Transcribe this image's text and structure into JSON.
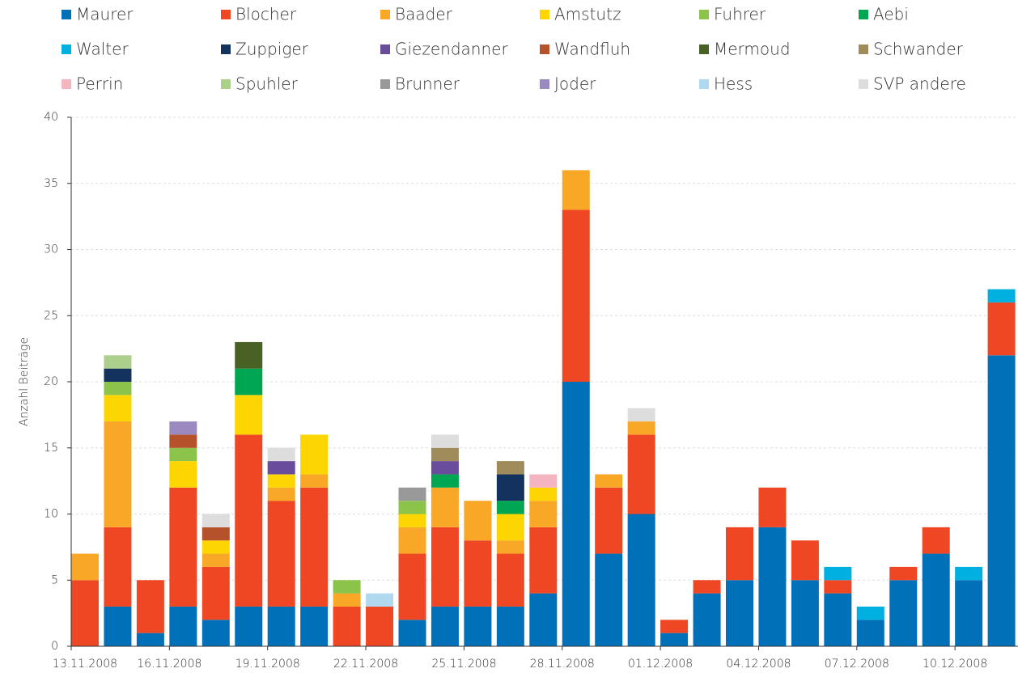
{
  "chart_data": {
    "type": "stacked_bar",
    "y_label": "Anzahl Beiträge",
    "categories": [
      "13.11.2008",
      null,
      null,
      "16.11.2008",
      null,
      null,
      "19.11.2008",
      null,
      null,
      "22.11.2008",
      null,
      null,
      "25.11.2008",
      null,
      null,
      "28.11.2008",
      null,
      null,
      "01.12.2008",
      null,
      null,
      "04.12.2008",
      null,
      null,
      "07.12.2008",
      null,
      null,
      "10.12.2008",
      null
    ],
    "ylim": [
      0,
      40
    ],
    "yticks": [
      0,
      5,
      10,
      15,
      20,
      25,
      30,
      35,
      40
    ],
    "grid": true,
    "series": [
      {
        "name": "Maurer",
        "color": "#0070b8",
        "values": [
          0,
          3,
          1,
          3,
          2,
          3,
          3,
          3,
          0,
          0,
          2,
          3,
          3,
          3,
          4,
          20,
          7,
          10,
          1,
          4,
          5,
          9,
          5,
          4,
          2,
          5,
          7,
          5,
          22
        ]
      },
      {
        "name": "Blocher",
        "color": "#ef4723",
        "values": [
          5,
          6,
          4,
          9,
          4,
          13,
          8,
          9,
          3,
          3,
          5,
          6,
          5,
          4,
          5,
          13,
          5,
          6,
          1,
          1,
          4,
          3,
          3,
          1,
          0,
          1,
          2,
          0,
          4
        ]
      },
      {
        "name": "Baader",
        "color": "#f9a727",
        "values": [
          2,
          8,
          0,
          0,
          1,
          0,
          1,
          1,
          1,
          0,
          2,
          3,
          3,
          1,
          2,
          3,
          1,
          1,
          0,
          0,
          0,
          0,
          0,
          0,
          0,
          0,
          0,
          0,
          0
        ]
      },
      {
        "name": "Amstutz",
        "color": "#fdd500",
        "values": [
          0,
          2,
          0,
          2,
          1,
          3,
          1,
          3,
          0,
          0,
          1,
          0,
          0,
          2,
          1,
          0,
          0,
          0,
          0,
          0,
          0,
          0,
          0,
          0,
          0,
          0,
          0,
          0,
          0
        ]
      },
      {
        "name": "Fuhrer",
        "color": "#8cc34a",
        "values": [
          0,
          1,
          0,
          1,
          0,
          0,
          0,
          0,
          1,
          0,
          1,
          0,
          0,
          0,
          0,
          0,
          0,
          0,
          0,
          0,
          0,
          0,
          0,
          0,
          0,
          0,
          0,
          0,
          0
        ]
      },
      {
        "name": "Aebi",
        "color": "#00a651",
        "values": [
          0,
          0,
          0,
          0,
          0,
          2,
          0,
          0,
          0,
          0,
          0,
          1,
          0,
          1,
          0,
          0,
          0,
          0,
          0,
          0,
          0,
          0,
          0,
          0,
          0,
          0,
          0,
          0,
          0
        ]
      },
      {
        "name": "Walter",
        "color": "#00b0e0",
        "values": [
          0,
          0,
          0,
          0,
          0,
          0,
          0,
          0,
          0,
          0,
          0,
          0,
          0,
          0,
          0,
          0,
          0,
          0,
          0,
          0,
          0,
          0,
          0,
          1,
          1,
          0,
          0,
          1,
          1
        ]
      },
      {
        "name": "Zuppiger",
        "color": "#14325e",
        "values": [
          0,
          1,
          0,
          0,
          0,
          0,
          0,
          0,
          0,
          0,
          0,
          0,
          0,
          2,
          0,
          0,
          0,
          0,
          0,
          0,
          0,
          0,
          0,
          0,
          0,
          0,
          0,
          0,
          0
        ]
      },
      {
        "name": "Giezendanner",
        "color": "#6a4c9c",
        "values": [
          0,
          0,
          0,
          0,
          0,
          0,
          1,
          0,
          0,
          0,
          0,
          1,
          0,
          0,
          0,
          0,
          0,
          0,
          0,
          0,
          0,
          0,
          0,
          0,
          0,
          0,
          0,
          0,
          0
        ]
      },
      {
        "name": "Wandfluh",
        "color": "#b5522b",
        "values": [
          0,
          0,
          0,
          1,
          1,
          0,
          0,
          0,
          0,
          0,
          0,
          0,
          0,
          0,
          0,
          0,
          0,
          0,
          0,
          0,
          0,
          0,
          0,
          0,
          0,
          0,
          0,
          0,
          0
        ]
      },
      {
        "name": "Mermoud",
        "color": "#4a6125",
        "values": [
          0,
          0,
          0,
          0,
          0,
          2,
          0,
          0,
          0,
          0,
          0,
          0,
          0,
          0,
          0,
          0,
          0,
          0,
          0,
          0,
          0,
          0,
          0,
          0,
          0,
          0,
          0,
          0,
          0
        ]
      },
      {
        "name": "Schwander",
        "color": "#a08c5b",
        "values": [
          0,
          0,
          0,
          0,
          0,
          0,
          0,
          0,
          0,
          0,
          0,
          1,
          0,
          1,
          0,
          0,
          0,
          0,
          0,
          0,
          0,
          0,
          0,
          0,
          0,
          0,
          0,
          0,
          0
        ]
      },
      {
        "name": "Perrin",
        "color": "#f4b5c0",
        "values": [
          0,
          0,
          0,
          0,
          0,
          0,
          0,
          0,
          0,
          0,
          0,
          0,
          0,
          0,
          1,
          0,
          0,
          0,
          0,
          0,
          0,
          0,
          0,
          0,
          0,
          0,
          0,
          0,
          0
        ]
      },
      {
        "name": "Spuhler",
        "color": "#acd08c",
        "values": [
          0,
          1,
          0,
          0,
          0,
          0,
          0,
          0,
          0,
          0,
          0,
          0,
          0,
          0,
          0,
          0,
          0,
          0,
          0,
          0,
          0,
          0,
          0,
          0,
          0,
          0,
          0,
          0,
          0
        ]
      },
      {
        "name": "Brunner",
        "color": "#999999",
        "values": [
          0,
          0,
          0,
          0,
          0,
          0,
          0,
          0,
          0,
          0,
          1,
          0,
          0,
          0,
          0,
          0,
          0,
          0,
          0,
          0,
          0,
          0,
          0,
          0,
          0,
          0,
          0,
          0,
          0
        ]
      },
      {
        "name": "Joder",
        "color": "#9b8ac0",
        "values": [
          0,
          0,
          0,
          1,
          0,
          0,
          0,
          0,
          0,
          0,
          0,
          0,
          0,
          0,
          0,
          0,
          0,
          0,
          0,
          0,
          0,
          0,
          0,
          0,
          0,
          0,
          0,
          0,
          0
        ]
      },
      {
        "name": "Hess",
        "color": "#b0d8ef",
        "values": [
          0,
          0,
          0,
          0,
          0,
          0,
          0,
          0,
          0,
          1,
          0,
          0,
          0,
          0,
          0,
          0,
          0,
          0,
          0,
          0,
          0,
          0,
          0,
          0,
          0,
          0,
          0,
          0,
          0
        ]
      },
      {
        "name": "SVP andere",
        "color": "#dddddd",
        "values": [
          0,
          0,
          0,
          0,
          1,
          0,
          1,
          0,
          0,
          0,
          0,
          1,
          0,
          0,
          0,
          0,
          0,
          1,
          0,
          0,
          0,
          0,
          0,
          0,
          0,
          0,
          0,
          0,
          0
        ]
      }
    ]
  }
}
